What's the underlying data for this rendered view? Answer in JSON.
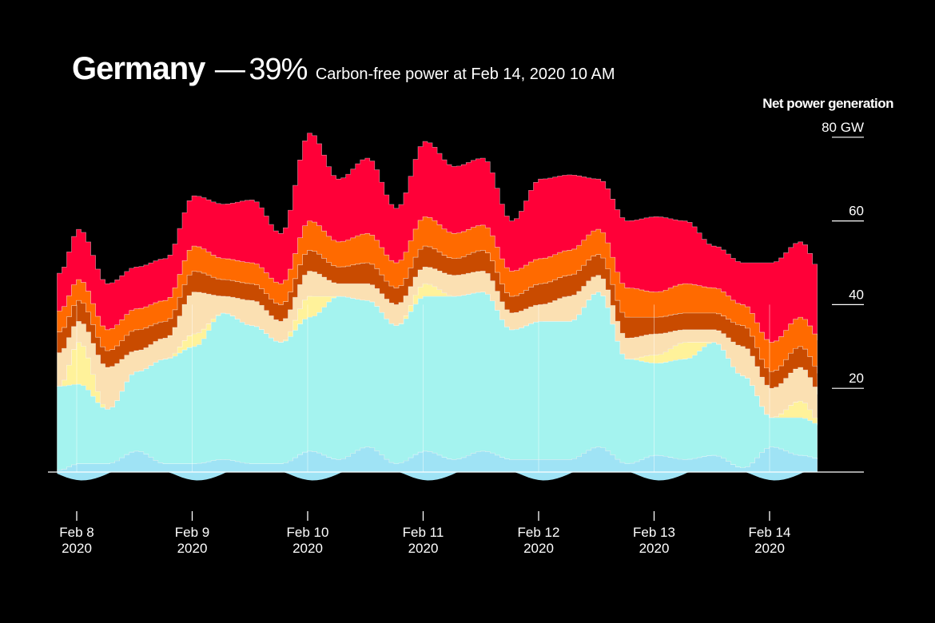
{
  "header": {
    "country": "Germany",
    "dash": "—",
    "percent": "39%",
    "subtitle": "Carbon-free power at Feb 14, 2020 10 AM"
  },
  "chart_data": {
    "type": "area",
    "stacked": true,
    "title": "Germany — 39% Carbon-free power at Feb 14, 2020 10 AM",
    "ylabel": "Net power generation",
    "ylim": [
      -5,
      80
    ],
    "y_ticks": [
      {
        "value": 80,
        "label": "80 GW"
      },
      {
        "value": 60,
        "label": "60"
      },
      {
        "value": 40,
        "label": "40"
      },
      {
        "value": 20,
        "label": "20"
      }
    ],
    "x_ticks": [
      {
        "day": 0,
        "line1": "Feb 8",
        "line2": "2020"
      },
      {
        "day": 1,
        "line1": "Feb 9",
        "line2": "2020"
      },
      {
        "day": 2,
        "line1": "Feb 10",
        "line2": "2020"
      },
      {
        "day": 3,
        "line1": "Feb 11",
        "line2": "2020"
      },
      {
        "day": 4,
        "line1": "Feb 12",
        "line2": "2020"
      },
      {
        "day": 5,
        "line1": "Feb 13",
        "line2": "2020"
      },
      {
        "day": 6,
        "line1": "Feb 14",
        "line2": "2020"
      }
    ],
    "x_days": [
      -0.17,
      0.0,
      0.25,
      0.5,
      0.75,
      1.0,
      1.25,
      1.5,
      1.75,
      2.0,
      2.25,
      2.5,
      2.75,
      3.0,
      3.25,
      3.5,
      3.75,
      4.0,
      4.25,
      4.5,
      4.75,
      5.0,
      5.25,
      5.5,
      5.75,
      6.0,
      6.25,
      6.45
    ],
    "series": [
      {
        "color": "#9fe3f5",
        "values": [
          0.5,
          2,
          2,
          5,
          2,
          2,
          3,
          2,
          2,
          5,
          3,
          6,
          2,
          5,
          3,
          5,
          3,
          3,
          3,
          6,
          2,
          4,
          3,
          4,
          1,
          6,
          4,
          3
        ]
      },
      {
        "color": "#a4f3ef",
        "values": [
          20,
          19,
          13,
          19,
          25,
          28,
          35,
          33,
          29,
          32,
          39,
          35,
          33,
          37,
          39,
          38,
          31,
          33,
          33,
          37,
          25,
          22,
          24,
          27,
          22,
          7,
          9,
          8
        ]
      },
      {
        "color": "#fff29a",
        "values": [
          0,
          10,
          0,
          0,
          0,
          3,
          0,
          0,
          0,
          5,
          0,
          0,
          0,
          3,
          0,
          0,
          0,
          0,
          0,
          0,
          0,
          2,
          4,
          0,
          0,
          0,
          4,
          0
        ]
      },
      {
        "color": "#fbe0b2",
        "values": [
          8,
          5,
          10,
          5,
          5,
          10,
          4,
          6,
          5,
          6,
          3,
          4,
          5,
          4,
          5,
          5,
          4,
          4,
          6,
          4,
          5,
          5,
          3,
          3,
          7,
          7,
          8,
          7
        ]
      },
      {
        "color": "#c94b00",
        "values": [
          5,
          5,
          4,
          5,
          4,
          5,
          4,
          4,
          4,
          5,
          4,
          5,
          4,
          5,
          4,
          5,
          4,
          5,
          5,
          5,
          5,
          4,
          4,
          4,
          5,
          4,
          5,
          5
        ]
      },
      {
        "color": "#ff6a00",
        "values": [
          5,
          5,
          5,
          5,
          5,
          6,
          5,
          5,
          5,
          7,
          6,
          7,
          6,
          7,
          6,
          6,
          6,
          6,
          6,
          6,
          7,
          6,
          7,
          6,
          5,
          7,
          7,
          8
        ]
      },
      {
        "color": "#ff0038",
        "values": [
          9,
          12,
          11,
          10,
          10,
          12,
          13,
          15,
          12,
          21,
          15,
          18,
          13,
          18,
          16,
          16,
          12,
          19,
          18,
          12,
          16,
          18,
          15,
          10,
          10,
          19,
          18,
          16
        ]
      }
    ]
  }
}
